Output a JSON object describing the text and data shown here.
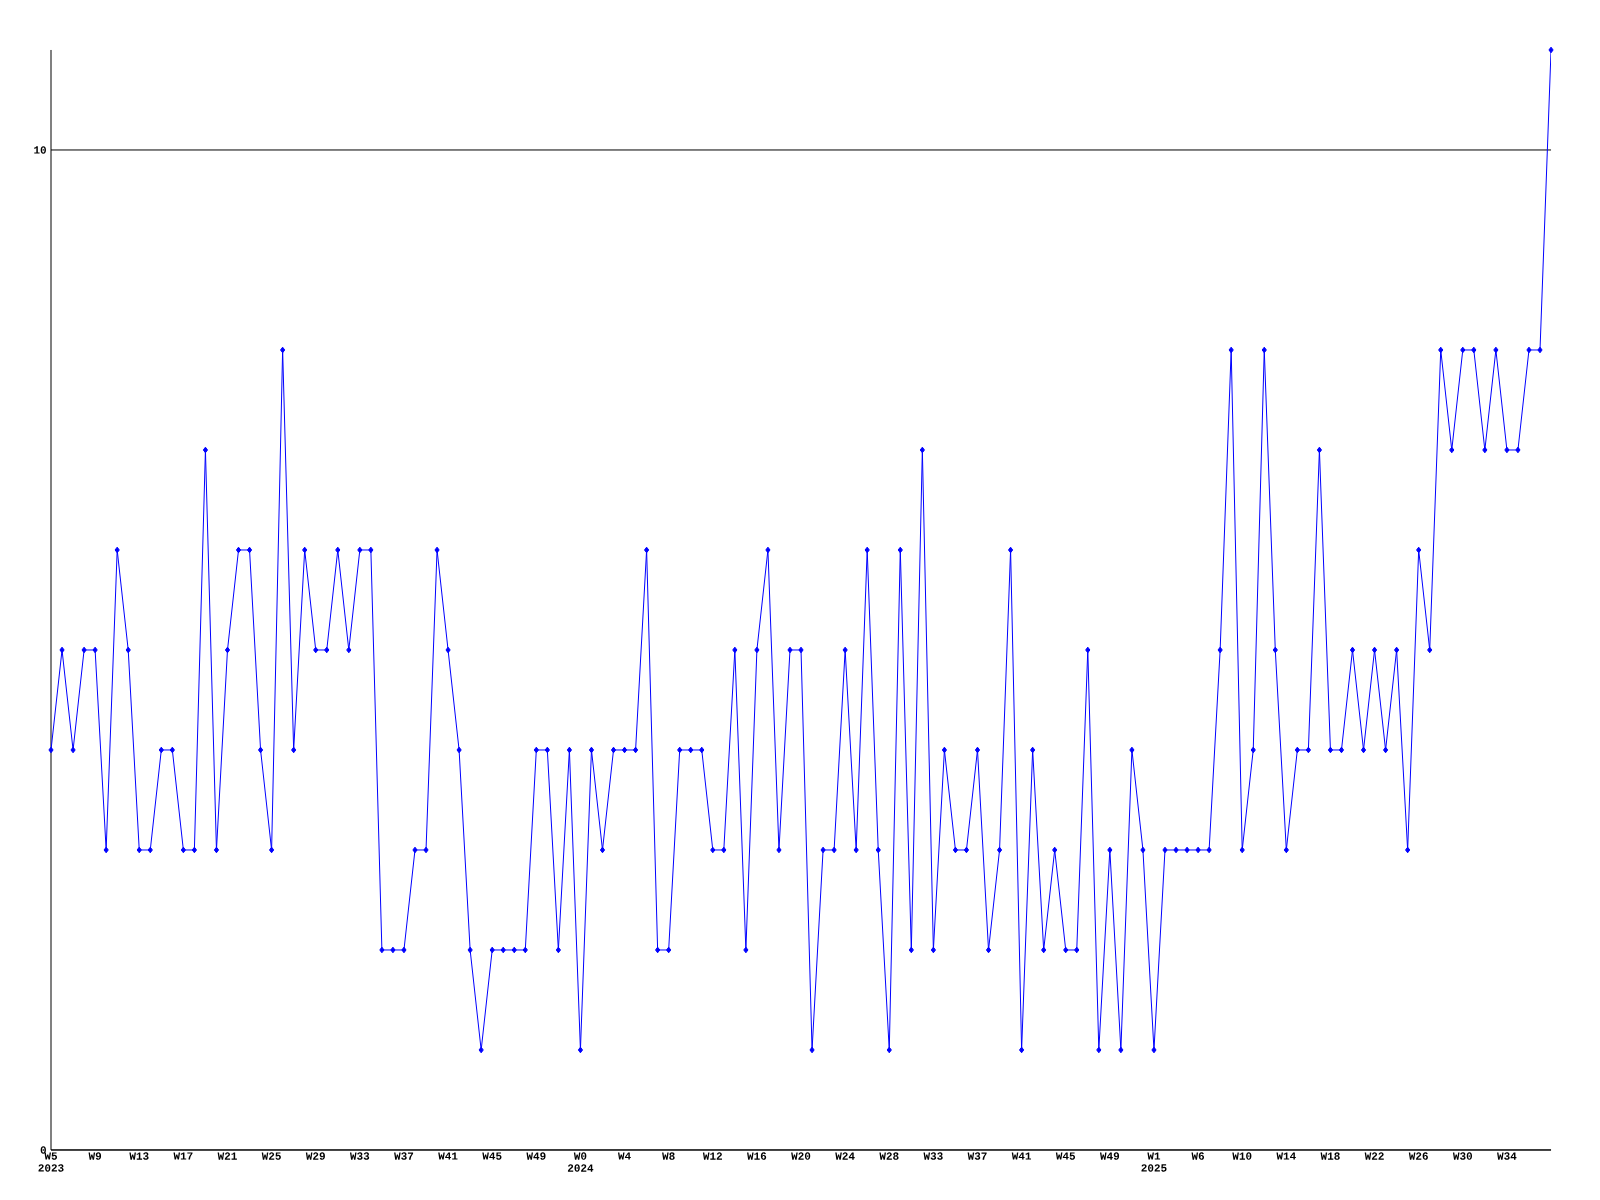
{
  "chart_data": {
    "type": "line",
    "categories": [
      "W5 2023",
      null,
      null,
      null,
      "W9",
      null,
      null,
      null,
      "W13",
      null,
      null,
      null,
      "W17",
      null,
      null,
      null,
      "W21",
      null,
      null,
      null,
      "W25",
      null,
      null,
      null,
      "W29",
      null,
      null,
      null,
      "W33",
      null,
      null,
      null,
      "W37",
      null,
      null,
      null,
      "W41",
      null,
      null,
      null,
      "W45",
      null,
      null,
      null,
      "W49",
      null,
      null,
      null,
      "W0 2024",
      null,
      null,
      null,
      "W4",
      null,
      null,
      null,
      "W8",
      null,
      null,
      null,
      "W12",
      null,
      null,
      null,
      "W16",
      null,
      null,
      null,
      "W20",
      null,
      null,
      null,
      "W24",
      null,
      null,
      null,
      "W28",
      null,
      null,
      null,
      "W33",
      null,
      null,
      null,
      "W37",
      null,
      null,
      null,
      "W41",
      null,
      null,
      null,
      "W45",
      null,
      null,
      null,
      "W49",
      null,
      null,
      null,
      "W1 2025",
      null,
      null,
      null,
      "W6",
      null,
      null,
      null,
      "W10",
      null,
      null,
      null,
      "W14",
      null,
      null,
      null,
      "W18",
      null,
      null,
      null,
      "W22",
      null,
      null,
      null,
      "W26",
      null,
      null,
      null,
      "W30",
      null,
      null,
      null,
      "W34",
      null,
      null,
      null,
      null
    ],
    "values": [
      4,
      5,
      4,
      5,
      5,
      3,
      6,
      5,
      3,
      3,
      4,
      4,
      3,
      3,
      7,
      3,
      5,
      6,
      6,
      4,
      3,
      8,
      4,
      6,
      5,
      5,
      6,
      5,
      6,
      6,
      2,
      2,
      2,
      3,
      3,
      6,
      5,
      4,
      2,
      1,
      2,
      2,
      2,
      2,
      4,
      4,
      2,
      4,
      1,
      4,
      3,
      4,
      4,
      4,
      6,
      2,
      2,
      4,
      4,
      4,
      3,
      3,
      5,
      2,
      5,
      6,
      3,
      5,
      5,
      1,
      3,
      3,
      5,
      3,
      6,
      3,
      1,
      6,
      2,
      7,
      2,
      4,
      3,
      3,
      4,
      2,
      3,
      6,
      1,
      4,
      2,
      3,
      2,
      2,
      5,
      1,
      3,
      1,
      4,
      3,
      1,
      3,
      3,
      3,
      3,
      3,
      5,
      8,
      3,
      4,
      8,
      5,
      3,
      4,
      4,
      7,
      4,
      4,
      5,
      4,
      5,
      4,
      5,
      3,
      6,
      5,
      8,
      7,
      8,
      8,
      7,
      8,
      7,
      7,
      8,
      8,
      11
    ],
    "color": "#0000ff",
    "marker": "diamond",
    "ylim": [
      0,
      11
    ],
    "yticks": [
      0,
      10
    ],
    "grid": "y"
  }
}
